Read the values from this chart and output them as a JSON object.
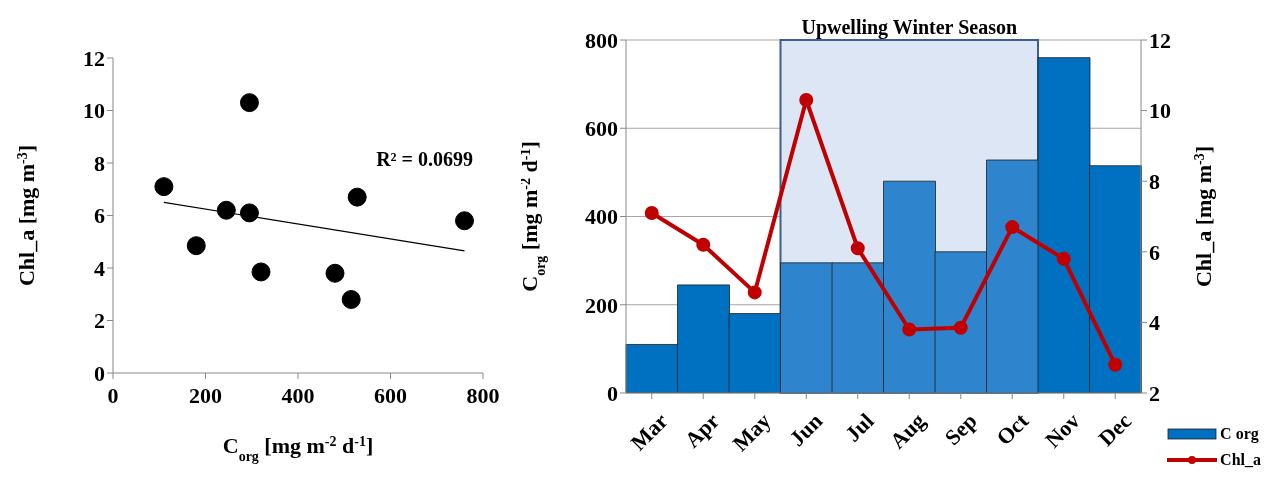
{
  "chart_data": [
    {
      "type": "scatter",
      "xlabel": "C$_{org}$ [mg m$^{-2}$ d$^{-1}$]",
      "ylabel": "Chl_a [mg m$^{-3}$]",
      "annotations": [
        "R² = 0.0699"
      ],
      "xlim": [
        0,
        800
      ],
      "xticks": [
        0,
        200,
        400,
        600,
        800
      ],
      "ylim": [
        0,
        12
      ],
      "yticks": [
        0,
        2,
        4,
        6,
        8,
        10,
        12
      ],
      "marker": "circle",
      "series": [
        {
          "color": "#000000",
          "x": [
            110,
            245,
            180,
            295,
            295,
            480,
            320,
            528,
            760,
            515
          ],
          "values": [
            7.1,
            6.2,
            4.85,
            10.3,
            6.1,
            3.8,
            3.85,
            6.7,
            5.8,
            2.8
          ]
        },
        {
          "type": "line",
          "color": "#000000",
          "marker": "none",
          "x": [
            110,
            760
          ],
          "values": [
            6.5,
            4.65
          ]
        }
      ]
    },
    {
      "type": "bar",
      "ylabel": "C$_{org}$ [mg m$^{-2}$ d$^{-1}$]",
      "y2label": "Chl_a [mg m$^{-3}$]",
      "categories": [
        "Mar",
        "Apr",
        "May",
        "Jun",
        "Jul",
        "Aug",
        "Sep",
        "Oct",
        "Nov",
        "Dec"
      ],
      "ylim": [
        0,
        800
      ],
      "yticks": [
        0,
        200,
        400,
        600,
        800
      ],
      "y2lim": [
        2,
        12
      ],
      "y2ticks": [
        2,
        4,
        6,
        8,
        10,
        12
      ],
      "grid": "y",
      "legend": "bottom right",
      "marker": "circle",
      "bands": [
        {
          "axis": "x",
          "from": "Jun",
          "to": "Oct",
          "label": "Upwelling Winter Season",
          "color": "#dce6f4"
        }
      ],
      "series": [
        {
          "name": "C org",
          "color": "#0070c0",
          "colors": [
            "#0070c0",
            "#0070c0",
            "#0070c0",
            "#2e84cd",
            "#2e84cd",
            "#2e84cd",
            "#2e84cd",
            "#2e84cd",
            "#0070c0",
            "#0070c0"
          ],
          "values": [
            110,
            245,
            180,
            295,
            295,
            480,
            320,
            528,
            760,
            515
          ]
        },
        {
          "name": "Chl_a",
          "type": "line",
          "axis": "y2",
          "color": "#c00000",
          "values": [
            7.1,
            6.2,
            4.85,
            10.3,
            6.1,
            3.8,
            3.85,
            6.7,
            5.8,
            2.8
          ]
        }
      ]
    }
  ]
}
